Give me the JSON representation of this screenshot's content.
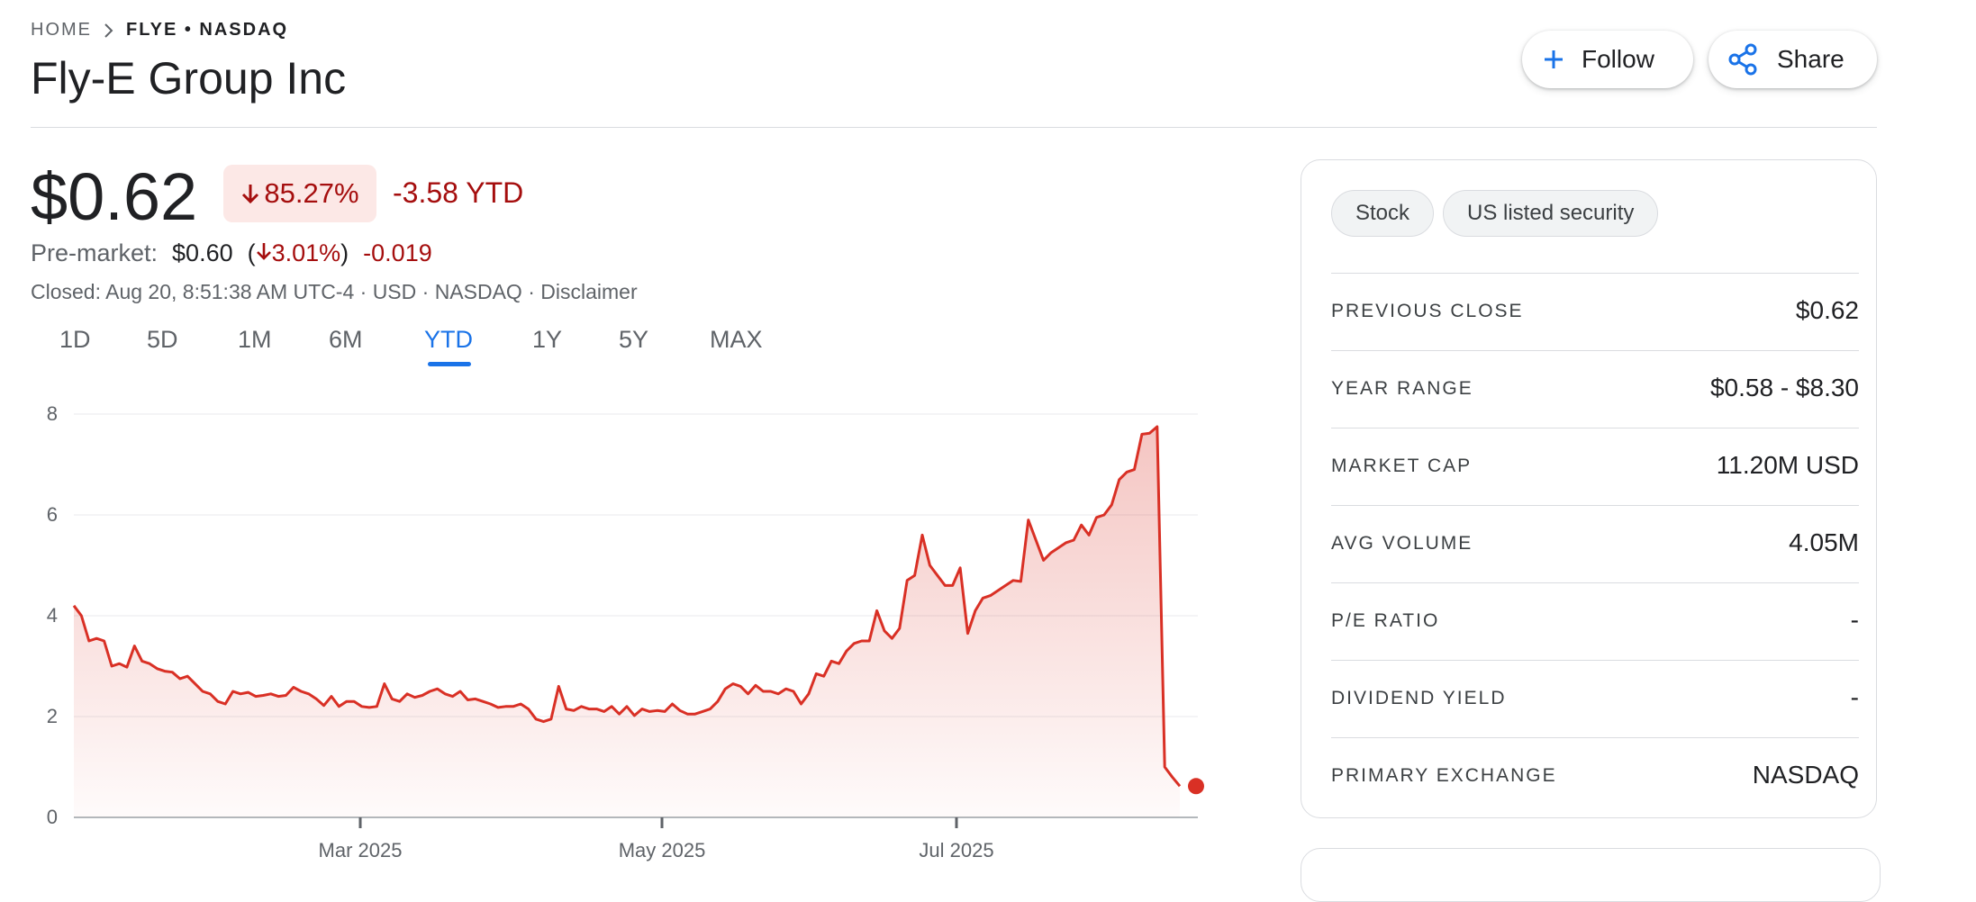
{
  "breadcrumb": {
    "home": "HOME",
    "current": "FLYE • NASDAQ"
  },
  "title": "Fly-E Group Inc",
  "actions": {
    "follow": "Follow",
    "share": "Share"
  },
  "quote": {
    "price": "$0.62",
    "change_percent": "85.27%",
    "change_abs": "-3.58 YTD",
    "premarket_label": "Pre-market:",
    "premarket_price": "$0.60",
    "premarket_open_paren": "(",
    "premarket_percent": "3.01%",
    "premarket_close_paren": ")",
    "premarket_change": "-0.019",
    "closed_line": "Closed: Aug 20, 8:51:38 AM UTC-4 · USD · NASDAQ · Disclaimer"
  },
  "ranges": {
    "tabs": [
      "1D",
      "5D",
      "1M",
      "6M",
      "YTD",
      "1Y",
      "5Y",
      "MAX"
    ],
    "selected": "YTD"
  },
  "colors": {
    "down": "#a50e0e",
    "line": "#d93025",
    "accent": "#1a73e8"
  },
  "chart_data": {
    "type": "area",
    "y_ticks": [
      "8",
      "6",
      "4",
      "2",
      "0"
    ],
    "x_ticks": [
      "Mar 2025",
      "May 2025",
      "Jul 2025"
    ],
    "ylim": [
      0,
      8
    ],
    "grid": true,
    "series": [
      {
        "values": [
          4.2,
          4.0,
          3.5,
          3.55,
          3.5,
          3.0,
          3.05,
          2.98,
          3.4,
          3.1,
          3.05,
          2.95,
          2.9,
          2.88,
          2.75,
          2.8,
          2.65,
          2.5,
          2.45,
          2.3,
          2.25,
          2.5,
          2.45,
          2.48,
          2.4,
          2.42,
          2.45,
          2.4,
          2.42,
          2.58,
          2.5,
          2.45,
          2.35,
          2.22,
          2.4,
          2.2,
          2.3,
          2.3,
          2.2,
          2.18,
          2.2,
          2.65,
          2.35,
          2.3,
          2.45,
          2.38,
          2.42,
          2.5,
          2.55,
          2.45,
          2.4,
          2.5,
          2.33,
          2.35,
          2.3,
          2.25,
          2.18,
          2.2,
          2.2,
          2.25,
          2.15,
          1.95,
          1.9,
          1.95,
          2.6,
          2.15,
          2.12,
          2.2,
          2.15,
          2.15,
          2.1,
          2.2,
          2.05,
          2.2,
          2.02,
          2.15,
          2.1,
          2.12,
          2.1,
          2.25,
          2.12,
          2.05,
          2.05,
          2.1,
          2.15,
          2.3,
          2.55,
          2.65,
          2.6,
          2.45,
          2.62,
          2.5,
          2.5,
          2.45,
          2.55,
          2.5,
          2.25,
          2.45,
          2.85,
          2.8,
          3.1,
          3.05,
          3.3,
          3.45,
          3.5,
          3.5,
          4.1,
          3.7,
          3.55,
          3.75,
          4.7,
          4.8,
          5.6,
          5.0,
          4.8,
          4.6,
          4.6,
          4.95,
          3.65,
          4.1,
          4.35,
          4.4,
          4.5,
          4.6,
          4.7,
          4.68,
          5.9,
          5.5,
          5.1,
          5.25,
          5.35,
          5.45,
          5.5,
          5.8,
          5.6,
          5.95,
          6.0,
          6.2,
          6.7,
          6.85,
          6.9,
          7.6,
          7.62,
          7.75,
          1.0,
          0.8,
          0.62
        ]
      }
    ]
  },
  "stats": {
    "chips": [
      "Stock",
      "US listed security"
    ],
    "rows": [
      {
        "label": "PREVIOUS CLOSE",
        "value": "$0.62"
      },
      {
        "label": "YEAR RANGE",
        "value": "$0.58 - $8.30"
      },
      {
        "label": "MARKET CAP",
        "value": "11.20M USD"
      },
      {
        "label": "AVG VOLUME",
        "value": "4.05M"
      },
      {
        "label": "P/E RATIO",
        "value": "-"
      },
      {
        "label": "DIVIDEND YIELD",
        "value": "-"
      },
      {
        "label": "PRIMARY EXCHANGE",
        "value": "NASDAQ"
      }
    ]
  }
}
